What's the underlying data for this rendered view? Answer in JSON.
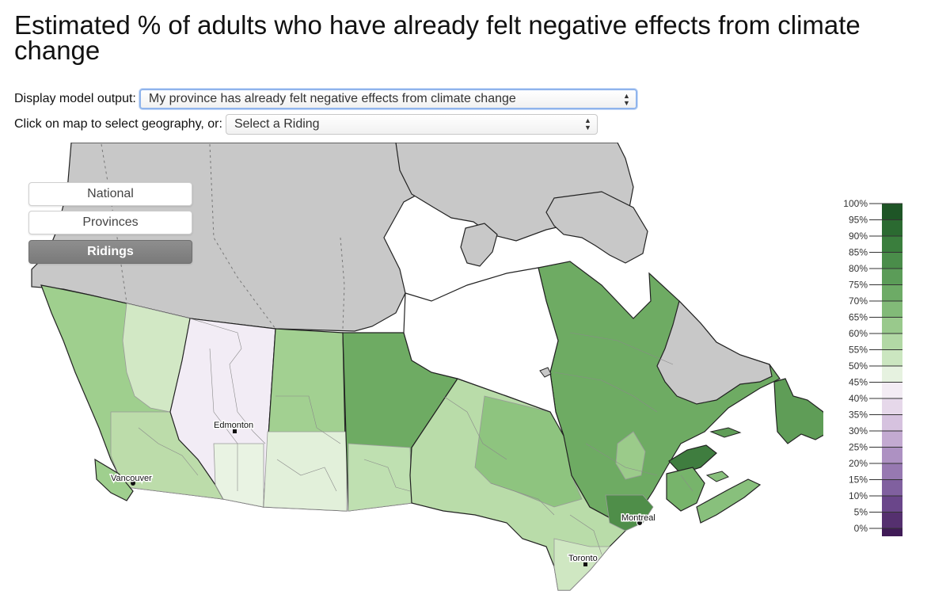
{
  "title": "Estimated % of adults who have already felt negative effects from climate change",
  "controls": {
    "display_label": "Display model output:",
    "display_value": "My province has already felt negative effects from climate change",
    "geo_label": "Click on map to select geography, or:",
    "geo_value": "Select a Riding"
  },
  "geography_buttons": [
    {
      "label": "National",
      "active": false
    },
    {
      "label": "Provinces",
      "active": false
    },
    {
      "label": "Ridings",
      "active": true
    }
  ],
  "cities": [
    {
      "name": "Edmonton"
    },
    {
      "name": "Vancouver"
    },
    {
      "name": "Toronto"
    },
    {
      "name": "Montreal"
    }
  ],
  "colors": {
    "no_data": "#c8c8c8",
    "green_palette": [
      "#f0f5ed",
      "#deeed8",
      "#c5e2bb",
      "#a6d197",
      "#8cc17e",
      "#76b168",
      "#5f9d57",
      "#4f8e4c",
      "#3f7d3f"
    ],
    "purple_palette": [
      "#f3edf5",
      "#ded0e6",
      "#c9b4d9",
      "#b096c8",
      "#9777b5",
      "#7e58a1",
      "#6b4190",
      "#55287c",
      "#45166a",
      "#360a58"
    ]
  },
  "legend": {
    "ticks": [
      "100%",
      "95%",
      "90%",
      "85%",
      "80%",
      "75%",
      "70%",
      "65%",
      "60%",
      "55%",
      "50%",
      "45%",
      "40%",
      "35%",
      "30%",
      "25%",
      "20%",
      "15%",
      "10%",
      "5%",
      "0%"
    ],
    "colors": [
      "#1e5526",
      "#2b6a31",
      "#3a7e3d",
      "#4a8d4a",
      "#5b9c58",
      "#6dab66",
      "#82ba78",
      "#99c98c",
      "#b2d8a5",
      "#cbe6c0",
      "#e6f2e0",
      "#f3ecf4",
      "#e6d8ea",
      "#d6c2df",
      "#c3aad1",
      "#ad91c2",
      "#9779b1",
      "#80609f",
      "#6a468a",
      "#55306f",
      "#401b57"
    ]
  }
}
